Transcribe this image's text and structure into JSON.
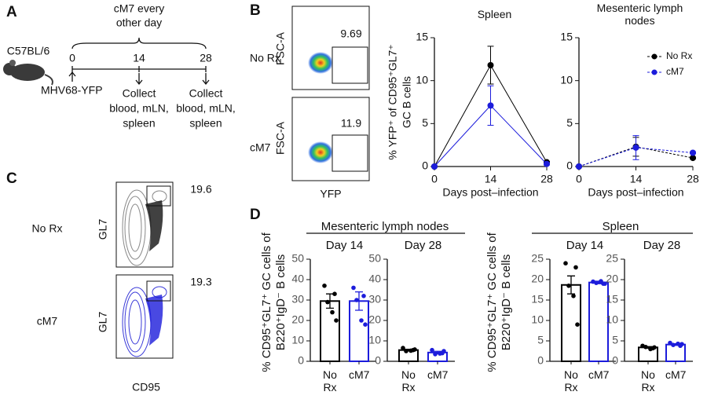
{
  "panel_labels": [
    "A",
    "B",
    "C",
    "D"
  ],
  "timeline": {
    "mouse": "C57BL/6",
    "treatment": [
      "cM7 every",
      "other day"
    ],
    "timepoints": [
      0,
      14,
      28
    ],
    "infection": "MHV68-YFP",
    "collections": [
      [
        "Collect",
        "blood, mLN,",
        "spleen"
      ],
      [
        "Collect",
        "blood, mLN,",
        "spleen"
      ]
    ]
  },
  "flow_b": {
    "x_axis": "YFP",
    "rows": [
      {
        "label": "No Rx",
        "y_axis": "FSC-A",
        "gate_value": 9.69
      },
      {
        "label": "cM7",
        "y_axis": "FSC-A",
        "gate_value": 11.9
      }
    ]
  },
  "flow_c": {
    "x_axis": "CD95",
    "rows": [
      {
        "label": "No Rx",
        "y_axis": "GL7",
        "gate_value": 19.6
      },
      {
        "label": "cM7",
        "y_axis": "GL7",
        "gate_value": 19.3
      }
    ]
  },
  "chart_data": [
    {
      "type": "line",
      "title": "Spleen",
      "y_label": [
        "% YFP⁺ of CD95⁺GL7⁺",
        "GC B cells"
      ],
      "x_label": "Days post–infection",
      "x": [
        0,
        14,
        28
      ],
      "xlim": [
        0,
        28
      ],
      "xticks": [
        0,
        14,
        28
      ],
      "ylim": [
        0,
        15
      ],
      "yticks": [
        0,
        5,
        10,
        15
      ],
      "line_style": "solid",
      "series": [
        {
          "name": "No Rx",
          "color": "#000000",
          "values": [
            0,
            11.8,
            0.5
          ],
          "errors": [
            0,
            2.2,
            0.1
          ]
        },
        {
          "name": "cM7",
          "color": "#1c1cdb",
          "values": [
            0,
            7.1,
            0.3
          ],
          "errors": [
            0,
            2.3,
            0.1
          ]
        }
      ]
    },
    {
      "type": "line",
      "title": "Mesenteric lymph nodes",
      "x_label": "Days post–infection",
      "x": [
        0,
        14,
        28
      ],
      "xlim": [
        0,
        28
      ],
      "xticks": [
        0,
        14,
        28
      ],
      "ylim": [
        0,
        15
      ],
      "yticks": [
        0,
        5,
        10,
        15
      ],
      "line_style": "dashed",
      "legend": "upper right",
      "series": [
        {
          "name": "No Rx",
          "color": "#000000",
          "values": [
            0,
            2.3,
            1.0
          ],
          "errors": [
            0,
            1.1,
            0.1
          ]
        },
        {
          "name": "cM7",
          "color": "#1c1cdb",
          "values": [
            0,
            2.2,
            1.6
          ],
          "errors": [
            0,
            1.4,
            0.1
          ]
        }
      ]
    },
    {
      "type": "bar",
      "group_title": "Mesenteric lymph nodes",
      "title": "Day 14",
      "y_label": [
        "% CD95⁺GL7⁺ GC cells of",
        "B220⁺IgD⁻ B cells"
      ],
      "categories": [
        "No Rx",
        "cM7"
      ],
      "colors": [
        "#000000",
        "#1c1cdb"
      ],
      "values": [
        29.5,
        29.5
      ],
      "errors": [
        3.5,
        4.5
      ],
      "points": [
        [
          37,
          33,
          29,
          24,
          20
        ],
        [
          36,
          32,
          30,
          20,
          18
        ]
      ],
      "ylim": [
        0,
        50
      ],
      "yticks": [
        0,
        10,
        20,
        30,
        40,
        50
      ]
    },
    {
      "type": "bar",
      "title": "Day 28",
      "categories": [
        "No Rx",
        "cM7"
      ],
      "colors": [
        "#000000",
        "#1c1cdb"
      ],
      "values": [
        5.5,
        4.3
      ],
      "errors": [
        0.4,
        0.6
      ],
      "points": [
        [
          6.5,
          5.5,
          5,
          5.2,
          5.8
        ],
        [
          5.5,
          4,
          3.5,
          3.8,
          5
        ]
      ],
      "ylim": [
        0,
        50
      ],
      "yticks": [
        0,
        10,
        20,
        30,
        40,
        50
      ]
    },
    {
      "type": "bar",
      "group_title": "Spleen",
      "title": "Day 14",
      "y_label": [
        "% CD95⁺GL7⁺ GC cells of",
        "B220⁺IgD⁻ B cells"
      ],
      "categories": [
        "No Rx",
        "cM7"
      ],
      "colors": [
        "#000000",
        "#1c1cdb"
      ],
      "values": [
        18.7,
        19.3
      ],
      "errors": [
        2.2,
        0.3
      ],
      "points": [
        [
          24,
          23,
          18.5,
          16,
          9
        ],
        [
          19.5,
          19,
          19.2,
          19.6,
          19
        ]
      ],
      "ylim": [
        0,
        25
      ],
      "yticks": [
        0,
        5,
        10,
        15,
        20,
        25
      ]
    },
    {
      "type": "bar",
      "title": "Day 28",
      "categories": [
        "No Rx",
        "cM7"
      ],
      "colors": [
        "#000000",
        "#1c1cdb"
      ],
      "values": [
        3.4,
        4.1
      ],
      "errors": [
        0.2,
        0.2
      ],
      "points": [
        [
          3.8,
          3.2,
          3.5,
          3.0,
          3.4
        ],
        [
          4.5,
          3.8,
          4.0,
          4.3,
          4.2
        ]
      ],
      "ylim": [
        0,
        25
      ],
      "yticks": [
        0,
        5,
        10,
        15,
        20,
        25
      ]
    }
  ]
}
